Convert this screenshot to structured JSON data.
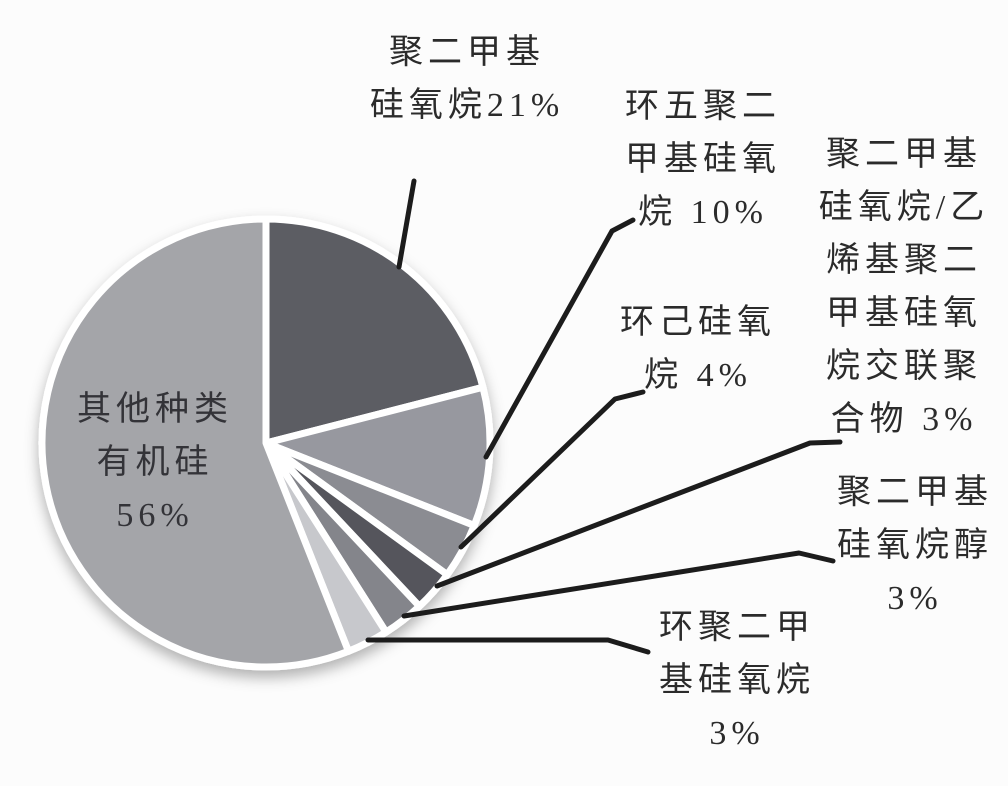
{
  "figure": {
    "background": "#fcfcfc",
    "leader_line_color": "#1c1c1c",
    "separator_color": "#ffffff",
    "text_color": "#2b2b2b"
  },
  "chart_data": {
    "type": "pie",
    "title": "",
    "unit": "%",
    "start_angle_deg": 0,
    "direction": "clockwise",
    "legend": "none",
    "slices": [
      {
        "name": "聚二甲基硅氧烷",
        "value": 21,
        "color": "#5c5d64",
        "label_display": "聚二甲基\n硅氧烷21%"
      },
      {
        "name": "环五聚二甲基硅氧烷",
        "value": 10,
        "color": "#97989f",
        "label_display": "环五聚二\n甲基硅氧\n烷 10%"
      },
      {
        "name": "环己硅氧烷",
        "value": 4,
        "color": "#8b8c92",
        "label_display": "环己硅氧\n烷 4%"
      },
      {
        "name": "聚二甲基硅氧烷/乙烯基聚二甲基硅氧烷交联聚合物",
        "value": 3,
        "color": "#54555b",
        "label_display": "聚二甲基\n硅氧烷/乙\n烯基聚二\n甲基硅氧\n烷交联聚\n合物 3%"
      },
      {
        "name": "聚二甲基硅氧烷醇",
        "value": 3,
        "color": "#84858b",
        "label_display": "聚二甲基\n硅氧烷醇\n3%"
      },
      {
        "name": "环聚二甲基硅氧烷",
        "value": 3,
        "color": "#c7c8cc",
        "label_display": "环聚二甲\n基硅氧烷\n3%"
      },
      {
        "name": "其他种类有机硅",
        "value": 56,
        "color": "#a4a5a9",
        "label_display": "其他种类\n有机硅\n56%"
      }
    ]
  }
}
